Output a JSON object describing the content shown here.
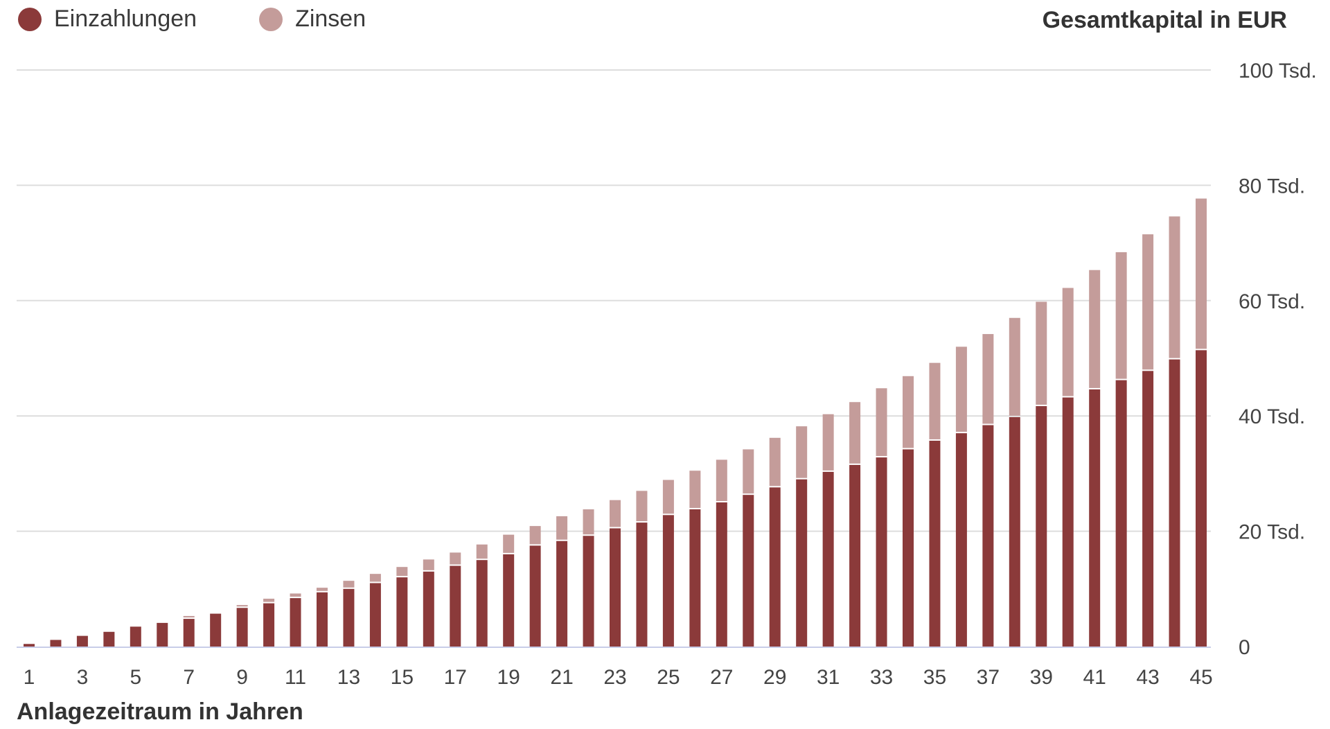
{
  "legend": {
    "deposits": "Einzahlungen",
    "interest": "Zinsen"
  },
  "colors": {
    "deposits": "#8b3a3a",
    "interest": "#c49c9a",
    "grid": "#dddddd",
    "axis": "#c8cde8"
  },
  "chart_data": {
    "type": "bar",
    "stacked": true,
    "title": "",
    "xlabel": "Anlagezeitraum in Jahren",
    "ylabel": "Gesamtkapital in EUR",
    "ylim": [
      0,
      100000
    ],
    "y_ticks": [
      {
        "value": 0,
        "label": "0"
      },
      {
        "value": 20000,
        "label": "20 Tsd."
      },
      {
        "value": 40000,
        "label": "40 Tsd."
      },
      {
        "value": 60000,
        "label": "60 Tsd."
      },
      {
        "value": 80000,
        "label": "80 Tsd."
      },
      {
        "value": 100000,
        "label": "100 Tsd."
      }
    ],
    "x_tick_labels": [
      "1",
      "3",
      "5",
      "7",
      "9",
      "11",
      "13",
      "15",
      "17",
      "19",
      "21",
      "23",
      "25",
      "27",
      "29",
      "31",
      "33",
      "35",
      "37",
      "39",
      "41",
      "43",
      "45"
    ],
    "categories": [
      "1",
      "2",
      "3",
      "4",
      "5",
      "6",
      "7",
      "8",
      "9",
      "10",
      "11",
      "12",
      "13",
      "14",
      "15",
      "16",
      "17",
      "18",
      "19",
      "20",
      "21",
      "22",
      "23",
      "24",
      "25",
      "26",
      "27",
      "28",
      "29",
      "30",
      "31",
      "32",
      "33",
      "34",
      "35",
      "36",
      "37",
      "38",
      "39",
      "40",
      "41",
      "42",
      "43",
      "44",
      "45"
    ],
    "legend_position": "top-left",
    "grid": true,
    "series": [
      {
        "name": "Einzahlungen",
        "values": [
          450,
          1150,
          1850,
          2550,
          3450,
          4100,
          4800,
          5700,
          6700,
          7500,
          8400,
          9400,
          10000,
          11000,
          12000,
          13000,
          14000,
          15000,
          16000,
          17500,
          18300,
          19200,
          20500,
          21500,
          22800,
          23800,
          25000,
          26300,
          27600,
          29000,
          30300,
          31500,
          32800,
          34200,
          35700,
          37000,
          38400,
          39800,
          41700,
          43200,
          44600,
          46200,
          47800,
          49800,
          51400
        ]
      },
      {
        "name": "Zinsen",
        "values": [
          0,
          0,
          0,
          0,
          0,
          0,
          500,
          0,
          500,
          800,
          800,
          800,
          1400,
          1600,
          1800,
          2100,
          2300,
          2700,
          3400,
          3400,
          4300,
          4600,
          4900,
          5500,
          6100,
          6700,
          7400,
          7900,
          8600,
          9200,
          10000,
          10900,
          12000,
          12700,
          13500,
          15000,
          15800,
          17200,
          18100,
          19000,
          20700,
          22200,
          23700,
          24800,
          26300
        ]
      }
    ]
  }
}
